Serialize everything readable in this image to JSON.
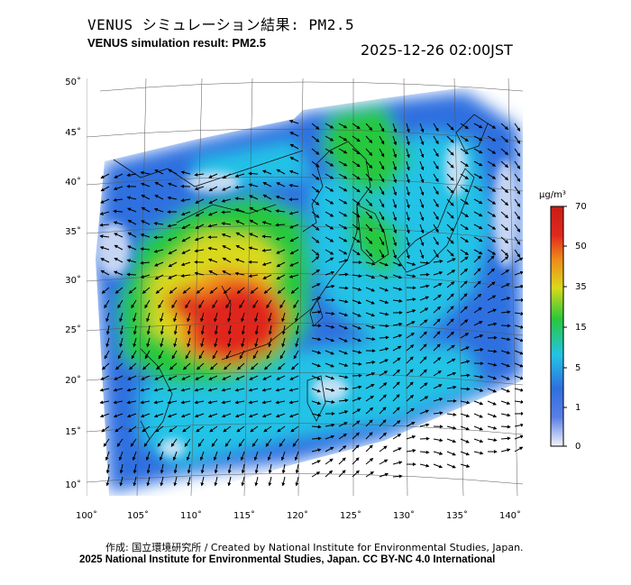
{
  "header": {
    "title_jp": "VENUS シミュレーション結果: PM2.5",
    "title_en": "VENUS simulation result: PM2.5",
    "timestamp": "2025-12-26 02:00JST"
  },
  "map": {
    "latitude_labels": [
      "50˚",
      "45˚",
      "40˚",
      "35˚",
      "30˚",
      "25˚",
      "20˚",
      "15˚",
      "10˚"
    ],
    "longitude_labels": [
      "100˚",
      "105˚",
      "110˚",
      "115˚",
      "120˚",
      "125˚",
      "130˚",
      "135˚",
      "140˚"
    ],
    "colors": {
      "background": "#ffffff",
      "low": "#dfe6f7",
      "blue": "#2f6fe0",
      "cyan": "#23c3e6",
      "green": "#28c83c",
      "yellow": "#d9d91a",
      "orange": "#f08a1a",
      "red": "#e0281e"
    }
  },
  "colorbar": {
    "unit": "μg/m³",
    "ticks": [
      "70",
      "50",
      "35",
      "15",
      "5",
      "1",
      "0"
    ],
    "colors": [
      "#e0281e",
      "#f08a1a",
      "#d9d91a",
      "#28c83c",
      "#23c3e6",
      "#2f6fe0",
      "#dfe6f7"
    ]
  },
  "footer": {
    "credit": "作成: 国立環境研究所 / Created by National Institute for Environmental Studies, Japan.",
    "copyright": "2025 National Institute for Environmental Studies, Japan. CC BY-NC 4.0 International"
  }
}
